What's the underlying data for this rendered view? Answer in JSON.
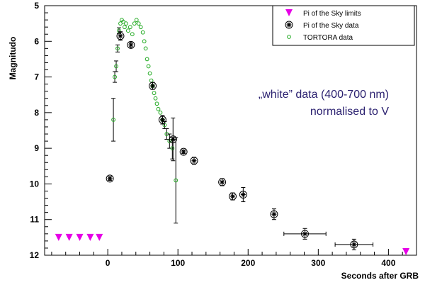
{
  "chart_data": {
    "type": "scatter",
    "title": "",
    "xlabel": "Seconds after GRB",
    "ylabel": "Magnitudo",
    "xlim": [
      -90,
      440
    ],
    "ylim": [
      12,
      5
    ],
    "y_inverted": true,
    "grid": false,
    "legend_position": "top-right",
    "x_ticks": [
      0,
      100,
      200,
      300,
      400
    ],
    "x_tick_labels": [
      "0",
      "100",
      "200",
      "300",
      "400"
    ],
    "y_ticks": [
      5,
      6,
      7,
      8,
      9,
      10,
      11,
      12
    ],
    "y_tick_labels": [
      "5",
      "6",
      "7",
      "8",
      "9",
      "10",
      "11",
      "12"
    ],
    "annotations": [
      "„white” data (400-700 nm)",
      "normalised to V"
    ],
    "series": [
      {
        "name": "Pi of the Sky limits",
        "marker": "triangle-down",
        "color": "#e600e6",
        "points": [
          {
            "x": -70,
            "y": 11.5
          },
          {
            "x": -55,
            "y": 11.5
          },
          {
            "x": -40,
            "y": 11.5
          },
          {
            "x": -25,
            "y": 11.5
          },
          {
            "x": -12,
            "y": 11.5
          },
          {
            "x": 425,
            "y": 11.9
          }
        ]
      },
      {
        "name": "Pi of the Sky data",
        "marker": "star-circle",
        "color": "#000000",
        "points": [
          {
            "x": 3,
            "y": 9.85,
            "yerr": 0.05
          },
          {
            "x": 18,
            "y": 5.85,
            "yerr": 0.12
          },
          {
            "x": 33,
            "y": 6.1,
            "yerr": 0.08
          },
          {
            "x": 64,
            "y": 7.25,
            "yerr": 0.1
          },
          {
            "x": 78,
            "y": 8.2,
            "yerr": 0.12
          },
          {
            "x": 93,
            "y": 8.75,
            "yerr": 0.6
          },
          {
            "x": 108,
            "y": 9.1,
            "yerr": 0.05
          },
          {
            "x": 123,
            "y": 9.35,
            "yerr": 0.1
          },
          {
            "x": 163,
            "y": 9.95,
            "yerr": 0.1
          },
          {
            "x": 178,
            "y": 10.35,
            "yerr": 0.1
          },
          {
            "x": 193,
            "y": 10.3,
            "yerr": 0.2
          },
          {
            "x": 237,
            "y": 10.85,
            "yerr": 0.15
          },
          {
            "x": 281,
            "y": 11.4,
            "yerr": 0.15,
            "xerr": 30
          },
          {
            "x": 351,
            "y": 11.7,
            "yerr": 0.15,
            "xerr": 27
          }
        ]
      },
      {
        "name": "TORTORA data",
        "marker": "circle-open",
        "color": "#22aa22",
        "points": [
          {
            "x": 8,
            "y": 8.2,
            "yerr": 0.6
          },
          {
            "x": 10,
            "y": 7.0,
            "yerr": 0.15
          },
          {
            "x": 12,
            "y": 6.7,
            "yerr": 0.15
          },
          {
            "x": 14,
            "y": 6.2,
            "yerr": 0.1
          },
          {
            "x": 16,
            "y": 5.7,
            "yerr": 0.08
          },
          {
            "x": 18,
            "y": 5.5
          },
          {
            "x": 20,
            "y": 5.4
          },
          {
            "x": 22,
            "y": 5.45
          },
          {
            "x": 24,
            "y": 5.6
          },
          {
            "x": 26,
            "y": 5.5
          },
          {
            "x": 29,
            "y": 5.7
          },
          {
            "x": 32,
            "y": 5.6
          },
          {
            "x": 35,
            "y": 5.8
          },
          {
            "x": 38,
            "y": 5.5
          },
          {
            "x": 41,
            "y": 5.4
          },
          {
            "x": 44,
            "y": 5.5
          },
          {
            "x": 47,
            "y": 5.6
          },
          {
            "x": 50,
            "y": 5.75
          },
          {
            "x": 52,
            "y": 6.0
          },
          {
            "x": 54,
            "y": 6.2
          },
          {
            "x": 56,
            "y": 6.5
          },
          {
            "x": 58,
            "y": 6.7
          },
          {
            "x": 60,
            "y": 6.9
          },
          {
            "x": 62,
            "y": 7.1
          },
          {
            "x": 64,
            "y": 7.25
          },
          {
            "x": 66,
            "y": 7.45
          },
          {
            "x": 68,
            "y": 7.6
          },
          {
            "x": 70,
            "y": 7.75
          },
          {
            "x": 72,
            "y": 7.9
          },
          {
            "x": 75,
            "y": 8.0
          },
          {
            "x": 78,
            "y": 8.2
          },
          {
            "x": 81,
            "y": 8.35,
            "yerr": 0.1
          },
          {
            "x": 84,
            "y": 8.6,
            "yerr": 0.15
          },
          {
            "x": 88,
            "y": 8.8,
            "yerr": 0.2
          },
          {
            "x": 92,
            "y": 9.0,
            "yerr": 0.3
          },
          {
            "x": 97,
            "y": 9.9,
            "yerr": 1.2
          }
        ]
      }
    ]
  }
}
